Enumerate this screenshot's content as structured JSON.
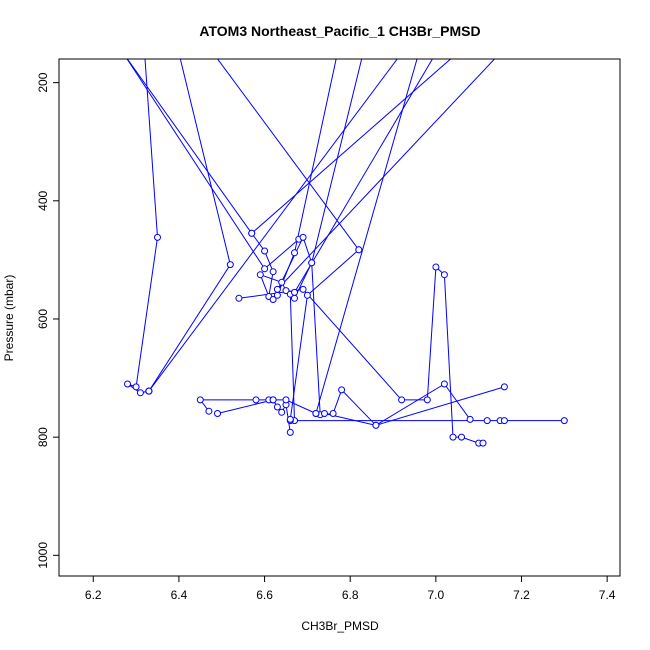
{
  "chart_data": {
    "type": "line",
    "title": "ATOM3 Northeast_Pacific_1 CH3Br_PMSD",
    "xlabel": "CH3Br_PMSD",
    "ylabel": "Pressure (mbar)",
    "xlim": [
      6.12,
      7.43
    ],
    "ylim": [
      1035,
      160
    ],
    "y_inverted": true,
    "x_ticks": [
      6.2,
      6.4,
      6.6,
      6.8,
      7.0,
      7.2,
      7.4
    ],
    "x_tick_labels": [
      "6.2",
      "6.4",
      "6.6",
      "6.8",
      "7.0",
      "7.2",
      "7.4"
    ],
    "y_ticks": [
      200,
      400,
      600,
      800,
      1000
    ],
    "y_tick_labels": [
      "200",
      "400",
      "600",
      "800",
      "1000"
    ],
    "grid": false,
    "legend": "none",
    "colors": {
      "series": "#0000ff",
      "frame": "#000000"
    },
    "series": [
      {
        "x": [
          6.32,
          6.35,
          6.3,
          6.28,
          6.31,
          6.33
        ],
        "y": [
          150,
          462,
          715,
          710,
          725,
          722
        ]
      },
      {
        "x": [
          6.4,
          6.52,
          6.33
        ],
        "y": [
          150,
          508,
          722
        ]
      },
      {
        "x": [
          6.27,
          6.57,
          6.6,
          6.62,
          6.61,
          6.59,
          6.64,
          6.65,
          6.66,
          6.67
        ],
        "y": [
          150,
          455,
          485,
          520,
          562,
          525,
          538,
          552,
          558,
          772
        ]
      },
      {
        "x": [
          6.27,
          6.6,
          6.68
        ],
        "y": [
          150,
          515,
          465
        ]
      },
      {
        "x": [
          6.54,
          6.69,
          6.92,
          6.98,
          7.0,
          7.02,
          7.04,
          7.06,
          7.1,
          7.11
        ],
        "y": [
          565,
          550,
          737,
          737,
          512,
          525,
          800,
          800,
          810,
          810
        ]
      },
      {
        "x": [
          6.62,
          6.69,
          6.71,
          6.73,
          6.76,
          6.78,
          6.86,
          7.02,
          7.08
        ],
        "y": [
          567,
          462,
          505,
          762,
          760,
          720,
          780,
          710,
          770
        ]
      },
      {
        "x": [
          6.47,
          6.45,
          6.58,
          6.61,
          6.62,
          6.63,
          6.64,
          6.65,
          6.66
        ],
        "y": [
          756,
          737,
          737,
          737,
          737,
          749,
          758,
          745,
          792
        ]
      },
      {
        "x": [
          6.49,
          6.62,
          6.65,
          6.72,
          6.74,
          6.86,
          7.16
        ],
        "y": [
          760,
          737,
          737,
          760,
          760,
          780,
          715
        ]
      },
      {
        "x": [
          6.66,
          7.12,
          7.15,
          7.16,
          7.3
        ],
        "y": [
          772,
          772,
          772,
          772,
          772
        ]
      },
      {
        "x": [
          6.82,
          6.7,
          6.66
        ],
        "y": [
          483,
          560,
          770
        ]
      },
      {
        "x": [
          6.83,
          6.71,
          6.67
        ],
        "y": [
          150,
          505,
          565
        ]
      },
      {
        "x": [
          6.77,
          6.67,
          6.63
        ],
        "y": [
          150,
          488,
          560
        ]
      },
      {
        "x": [
          6.48,
          6.82
        ],
        "y": [
          150,
          483
        ]
      },
      {
        "x": [
          7.0,
          6.67
        ],
        "y": [
          150,
          555
        ]
      },
      {
        "x": [
          7.05,
          6.57
        ],
        "y": [
          150,
          455
        ]
      },
      {
        "x": [
          7.15,
          6.63
        ],
        "y": [
          150,
          550
        ]
      },
      {
        "x": [
          6.96,
          6.72
        ],
        "y": [
          150,
          760
        ]
      },
      {
        "x": [
          6.92,
          6.33
        ],
        "y": [
          150,
          722
        ]
      }
    ]
  }
}
